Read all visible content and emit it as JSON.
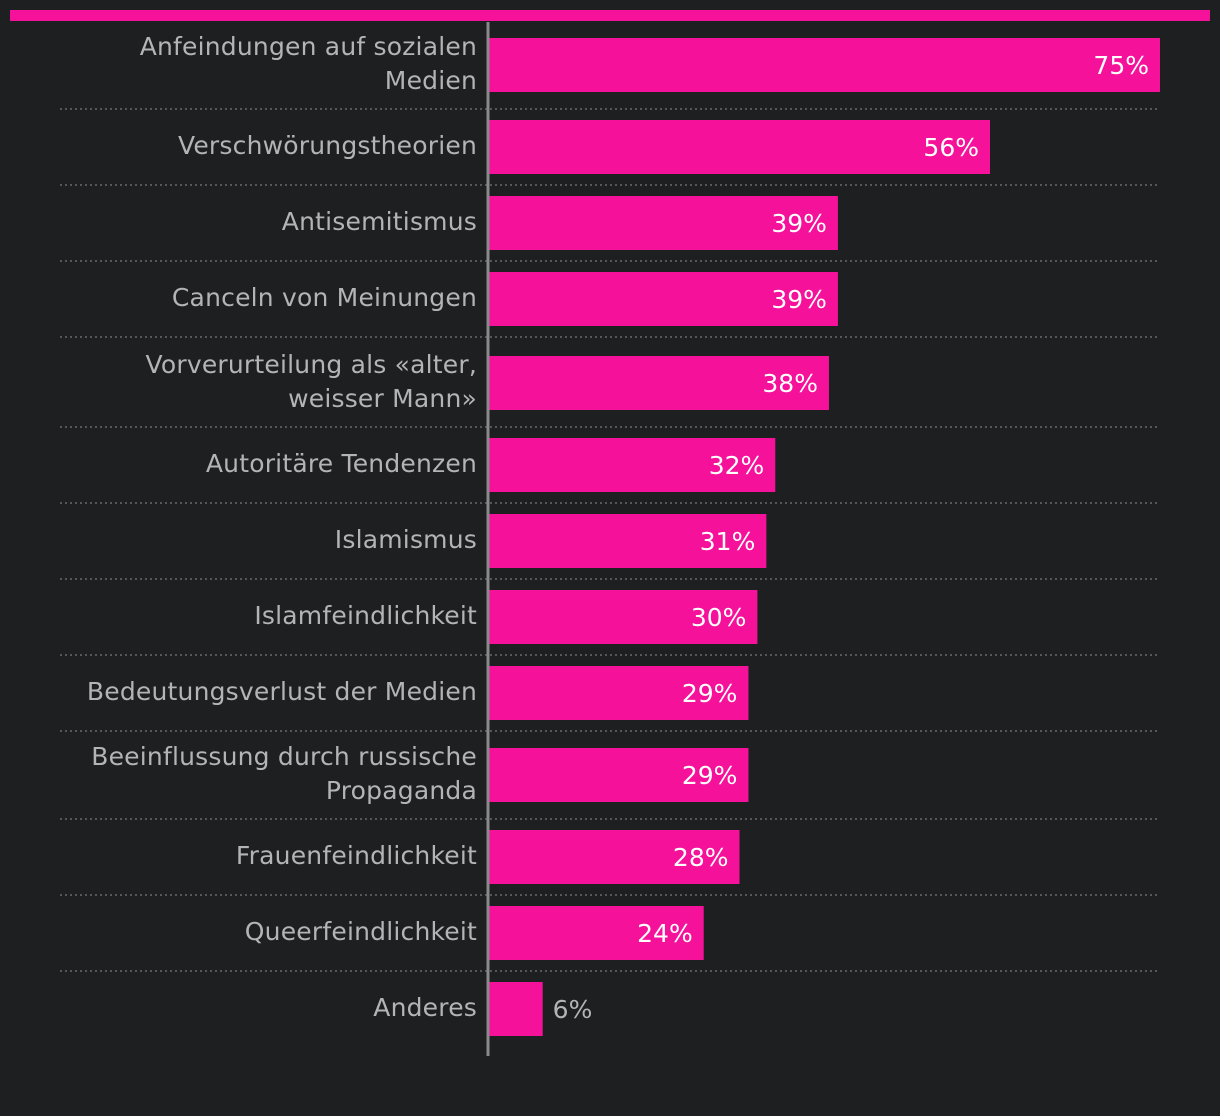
{
  "colors": {
    "background": "#1e1f21",
    "accent": "#f5119a",
    "label": "#b4b4b4",
    "value_inside": "#ffffff"
  },
  "chart_data": {
    "type": "bar",
    "orientation": "horizontal",
    "unit": "%",
    "xlim": [
      0,
      75
    ],
    "grid": false,
    "legend": "none",
    "categories": [
      [
        "Anfeindungen auf sozialen",
        "Medien"
      ],
      [
        "Verschwörungstheorien"
      ],
      [
        "Antisemitismus"
      ],
      [
        "Canceln von Meinungen"
      ],
      [
        "Vorverurteilung als «alter,",
        "weisser Mann»"
      ],
      [
        "Autoritäre Tendenzen"
      ],
      [
        "Islamismus"
      ],
      [
        "Islamfeindlichkeit"
      ],
      [
        "Bedeutungsverlust der Medien"
      ],
      [
        "Beeinflussung durch russische",
        "Propaganda"
      ],
      [
        "Frauenfeindlichkeit"
      ],
      [
        "Queerfeindlichkeit"
      ],
      [
        "Anderes"
      ]
    ],
    "values": [
      75,
      56,
      39,
      39,
      38,
      32,
      31,
      30,
      29,
      29,
      28,
      24,
      6
    ]
  }
}
